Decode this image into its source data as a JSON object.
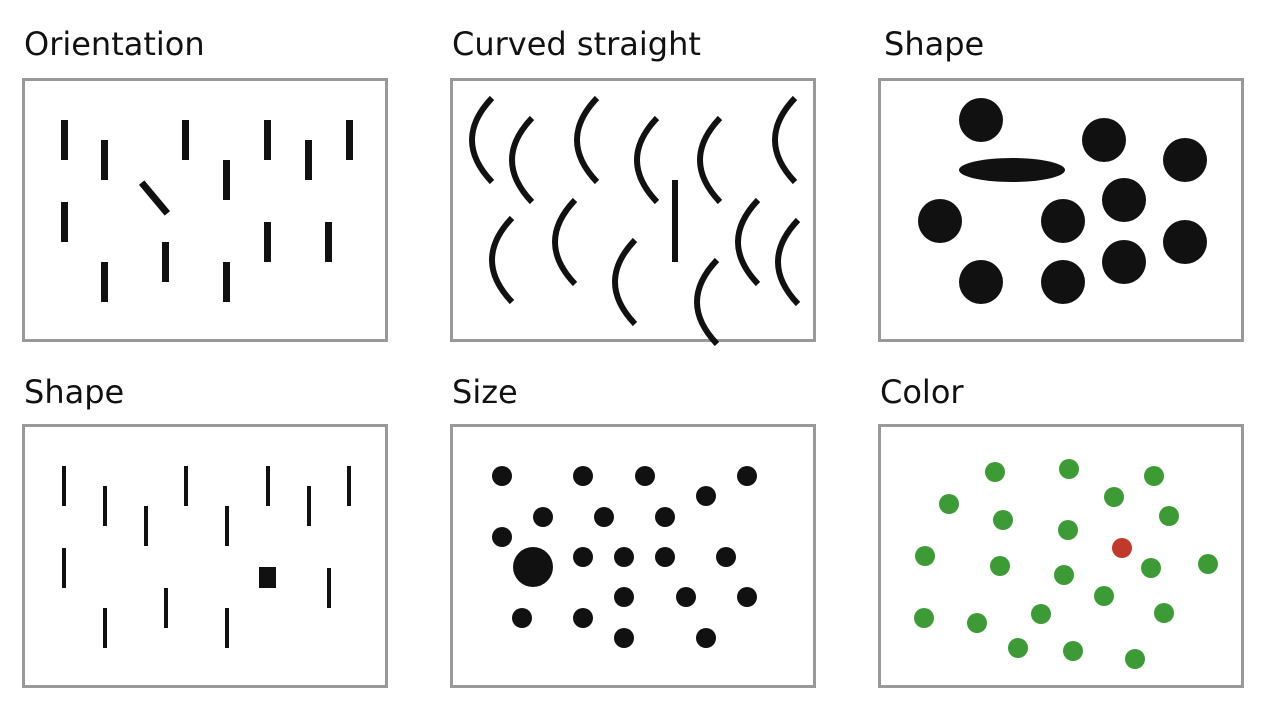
{
  "figure": {
    "colors": {
      "mark": "#111111",
      "frame": "#999999",
      "distractor_green": "#3d9b35",
      "target_red": "#c0392b"
    },
    "panels": [
      {
        "title": "Orientation",
        "feature": "orientation",
        "target": "tilted bar"
      },
      {
        "title": "Curved straight",
        "feature": "curvature",
        "target": "straight line among arcs"
      },
      {
        "title": "Shape",
        "feature": "shape",
        "target": "ellipse among circles"
      },
      {
        "title": "Shape",
        "feature": "shape",
        "target": "square among bars"
      },
      {
        "title": "Size",
        "feature": "size",
        "target": "large dot among small dots"
      },
      {
        "title": "Color",
        "feature": "color",
        "target": "red dot among green dots"
      }
    ]
  }
}
